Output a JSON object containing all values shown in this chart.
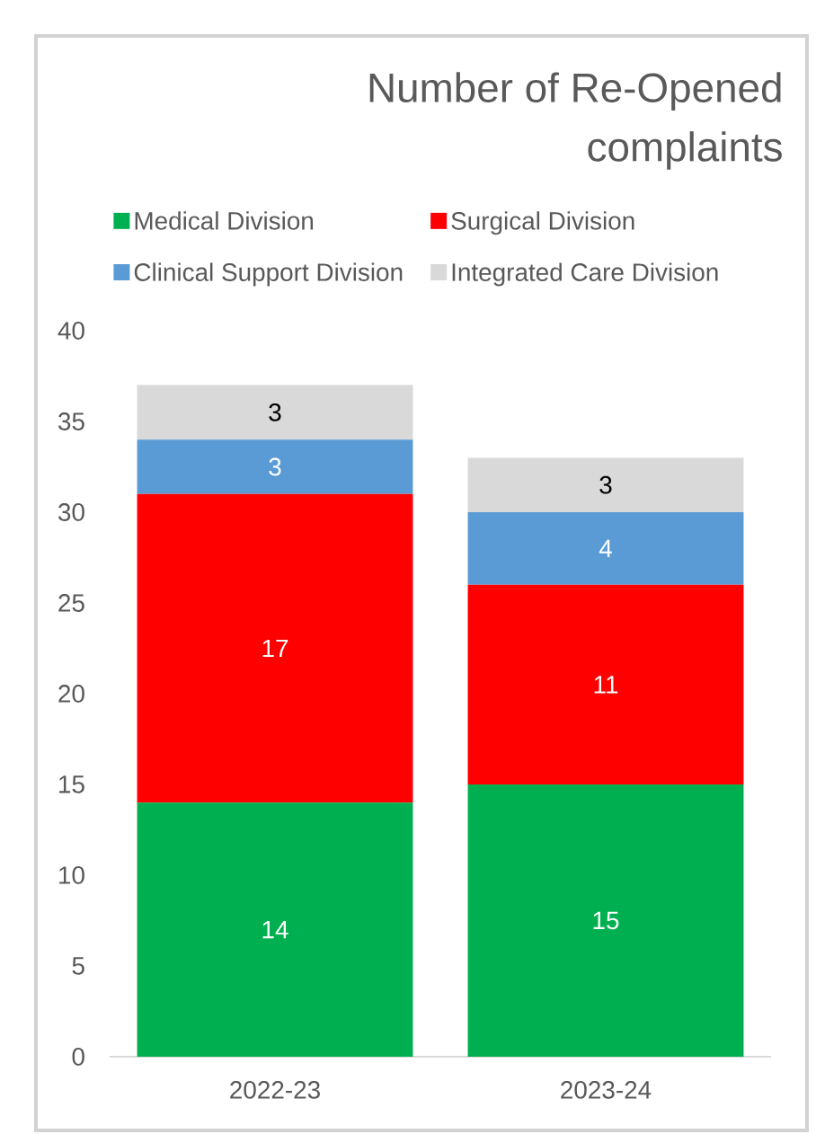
{
  "chart_data": {
    "type": "bar",
    "stacked": true,
    "title": "Number of Re-Opened complaints",
    "categories": [
      "2022-23",
      "2023-24"
    ],
    "series": [
      {
        "name": "Medical Division",
        "color": "#00b050",
        "values": [
          14,
          15
        ]
      },
      {
        "name": "Surgical Division",
        "color": "#ff0000",
        "values": [
          17,
          11
        ]
      },
      {
        "name": "Clinical Support Division",
        "color": "#5b9bd5",
        "values": [
          3,
          4
        ]
      },
      {
        "name": "Integrated Care Division",
        "color": "#d9d9d9",
        "values": [
          3,
          3
        ]
      }
    ],
    "ylim": [
      0,
      40
    ],
    "yticks": [
      0,
      5,
      10,
      15,
      20,
      25,
      30,
      35,
      40
    ],
    "data_labels": true,
    "legend": "top"
  }
}
